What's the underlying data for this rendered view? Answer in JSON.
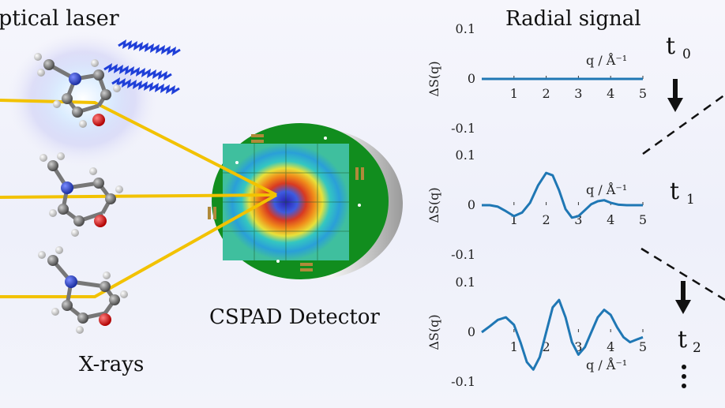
{
  "labels": {
    "optical_laser": "ptical laser",
    "xrays": "X-rays",
    "detector": "CSPAD Detector",
    "radial_signal": "Radial signal"
  },
  "time_labels": [
    "t",
    "t",
    "t"
  ],
  "time_subscripts": [
    "0",
    "1",
    "2"
  ],
  "colors": {
    "beam": "#f2c200",
    "laser": "#1f3fd8",
    "signal": "#1f77b4",
    "detector_board": "#118d1e",
    "atom_carbon": "#6e6e6e",
    "atom_nitrogen": "#2244cc",
    "atom_oxygen": "#dd1111",
    "atom_hydrogen": "#e8e8e8"
  },
  "chart_data": [
    {
      "type": "line",
      "ylabel": "ΔS(q)",
      "xlabel": "q / Å⁻¹",
      "xlim": [
        0,
        5
      ],
      "ylim": [
        -0.1,
        0.1
      ],
      "xticks": [
        "1",
        "2",
        "3",
        "4",
        "5"
      ],
      "yticks": [
        "0.1",
        "0",
        "-0.1"
      ],
      "x": [
        0,
        0.25,
        0.5,
        0.75,
        1,
        1.25,
        1.5,
        1.75,
        2,
        2.25,
        2.5,
        2.75,
        3,
        3.25,
        3.5,
        3.75,
        4,
        4.25,
        4.5,
        4.75,
        5
      ],
      "y": [
        0,
        0,
        0,
        0,
        0,
        0,
        0,
        0,
        0,
        0,
        0,
        0,
        0,
        0,
        0,
        0,
        0,
        0,
        0,
        0,
        0
      ]
    },
    {
      "type": "line",
      "ylabel": "ΔS(q)",
      "xlabel": "q / Å⁻¹",
      "xlim": [
        0,
        5
      ],
      "ylim": [
        -0.1,
        0.1
      ],
      "xticks": [
        "1",
        "2",
        "3",
        "4",
        "5"
      ],
      "yticks": [
        "0.1",
        "0",
        "-0.1"
      ],
      "x": [
        0,
        0.25,
        0.5,
        0.75,
        1,
        1.25,
        1.5,
        1.75,
        2,
        2.2,
        2.4,
        2.6,
        2.8,
        3,
        3.2,
        3.4,
        3.6,
        3.8,
        4,
        4.25,
        4.5,
        4.75,
        5
      ],
      "y": [
        0,
        0,
        -0.003,
        -0.012,
        -0.022,
        -0.015,
        0.005,
        0.04,
        0.065,
        0.06,
        0.03,
        -0.008,
        -0.025,
        -0.022,
        -0.01,
        0.002,
        0.008,
        0.01,
        0.005,
        0.001,
        0,
        0,
        0
      ]
    },
    {
      "type": "line",
      "ylabel": "ΔS(q)",
      "xlabel": "q / Å⁻¹",
      "xlim": [
        0,
        5
      ],
      "ylim": [
        -0.1,
        0.1
      ],
      "xticks": [
        "1",
        "2",
        "3",
        "4",
        "5"
      ],
      "yticks": [
        "0.1",
        "0",
        "-0.1"
      ],
      "x": [
        0,
        0.25,
        0.5,
        0.75,
        1,
        1.2,
        1.4,
        1.6,
        1.8,
        2,
        2.2,
        2.4,
        2.6,
        2.8,
        3,
        3.2,
        3.4,
        3.6,
        3.8,
        4,
        4.2,
        4.4,
        4.6,
        4.8,
        5
      ],
      "y": [
        0,
        0.012,
        0.025,
        0.03,
        0.015,
        -0.02,
        -0.06,
        -0.075,
        -0.05,
        0.0,
        0.05,
        0.065,
        0.03,
        -0.02,
        -0.045,
        -0.03,
        0.0,
        0.03,
        0.045,
        0.035,
        0.01,
        -0.01,
        -0.02,
        -0.015,
        -0.01
      ]
    }
  ]
}
